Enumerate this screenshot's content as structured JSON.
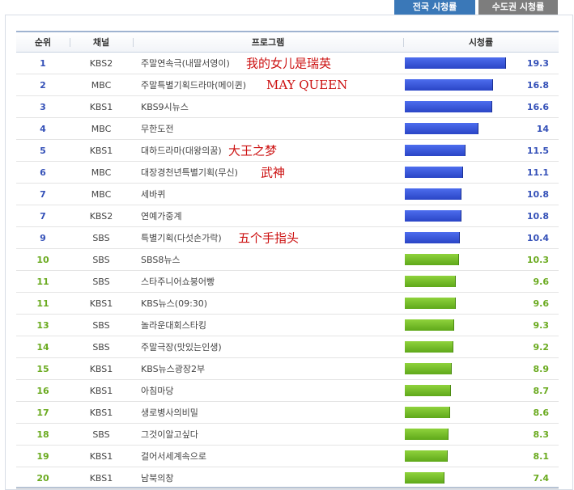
{
  "tabs": [
    {
      "label": "전국 시청률",
      "active": true
    },
    {
      "label": "수도권 시청률",
      "active": false
    }
  ],
  "headers": {
    "rank": "순위",
    "channel": "채널",
    "program": "프로그램",
    "rating": "시청률"
  },
  "colors": {
    "blue": "#3551b8",
    "green": "#6aaa1f",
    "note": "#cc1111"
  },
  "rows": [
    {
      "rank": "1",
      "channel": "KBS2",
      "program": "주말연속극(내딸서영이)",
      "rating": "19.3",
      "color": "blue",
      "note": "我的女儿是瑞英"
    },
    {
      "rank": "2",
      "channel": "MBC",
      "program": "주말특별기획드라마(메이퀸)",
      "rating": "16.8",
      "color": "blue",
      "note": "MAY QUEEN"
    },
    {
      "rank": "3",
      "channel": "KBS1",
      "program": "KBS9시뉴스",
      "rating": "16.6",
      "color": "blue",
      "note": ""
    },
    {
      "rank": "4",
      "channel": "MBC",
      "program": "무한도전",
      "rating": "14",
      "color": "blue",
      "note": ""
    },
    {
      "rank": "5",
      "channel": "KBS1",
      "program": "대하드라마(대왕의꿈)",
      "rating": "11.5",
      "color": "blue",
      "note": "大王之梦"
    },
    {
      "rank": "6",
      "channel": "MBC",
      "program": "대장경천년특별기획(무신)",
      "rating": "11.1",
      "color": "blue",
      "note": "武神"
    },
    {
      "rank": "7",
      "channel": "MBC",
      "program": "세바퀴",
      "rating": "10.8",
      "color": "blue",
      "note": ""
    },
    {
      "rank": "7",
      "channel": "KBS2",
      "program": "연예가중계",
      "rating": "10.8",
      "color": "blue",
      "note": ""
    },
    {
      "rank": "9",
      "channel": "SBS",
      "program": "특별기획(다섯손가락)",
      "rating": "10.4",
      "color": "blue",
      "note": "五个手指头"
    },
    {
      "rank": "10",
      "channel": "SBS",
      "program": "SBS8뉴스",
      "rating": "10.3",
      "color": "green",
      "note": ""
    },
    {
      "rank": "11",
      "channel": "SBS",
      "program": "스타주니어쇼붕어빵",
      "rating": "9.6",
      "color": "green",
      "note": ""
    },
    {
      "rank": "11",
      "channel": "KBS1",
      "program": "KBS뉴스(09:30)",
      "rating": "9.6",
      "color": "green",
      "note": ""
    },
    {
      "rank": "13",
      "channel": "SBS",
      "program": "놀라운대회스타킹",
      "rating": "9.3",
      "color": "green",
      "note": ""
    },
    {
      "rank": "14",
      "channel": "SBS",
      "program": "주말극장(맛있는인생)",
      "rating": "9.2",
      "color": "green",
      "note": ""
    },
    {
      "rank": "15",
      "channel": "KBS1",
      "program": "KBS뉴스광장2부",
      "rating": "8.9",
      "color": "green",
      "note": ""
    },
    {
      "rank": "16",
      "channel": "KBS1",
      "program": "아침마당",
      "rating": "8.7",
      "color": "green",
      "note": ""
    },
    {
      "rank": "17",
      "channel": "KBS1",
      "program": "생로병사의비밀",
      "rating": "8.6",
      "color": "green",
      "note": ""
    },
    {
      "rank": "18",
      "channel": "SBS",
      "program": "그것이알고싶다",
      "rating": "8.3",
      "color": "green",
      "note": ""
    },
    {
      "rank": "19",
      "channel": "KBS1",
      "program": "걸어서세계속으로",
      "rating": "8.1",
      "color": "green",
      "note": ""
    },
    {
      "rank": "20",
      "channel": "KBS1",
      "program": "남북의창",
      "rating": "7.4",
      "color": "green",
      "note": ""
    }
  ]
}
